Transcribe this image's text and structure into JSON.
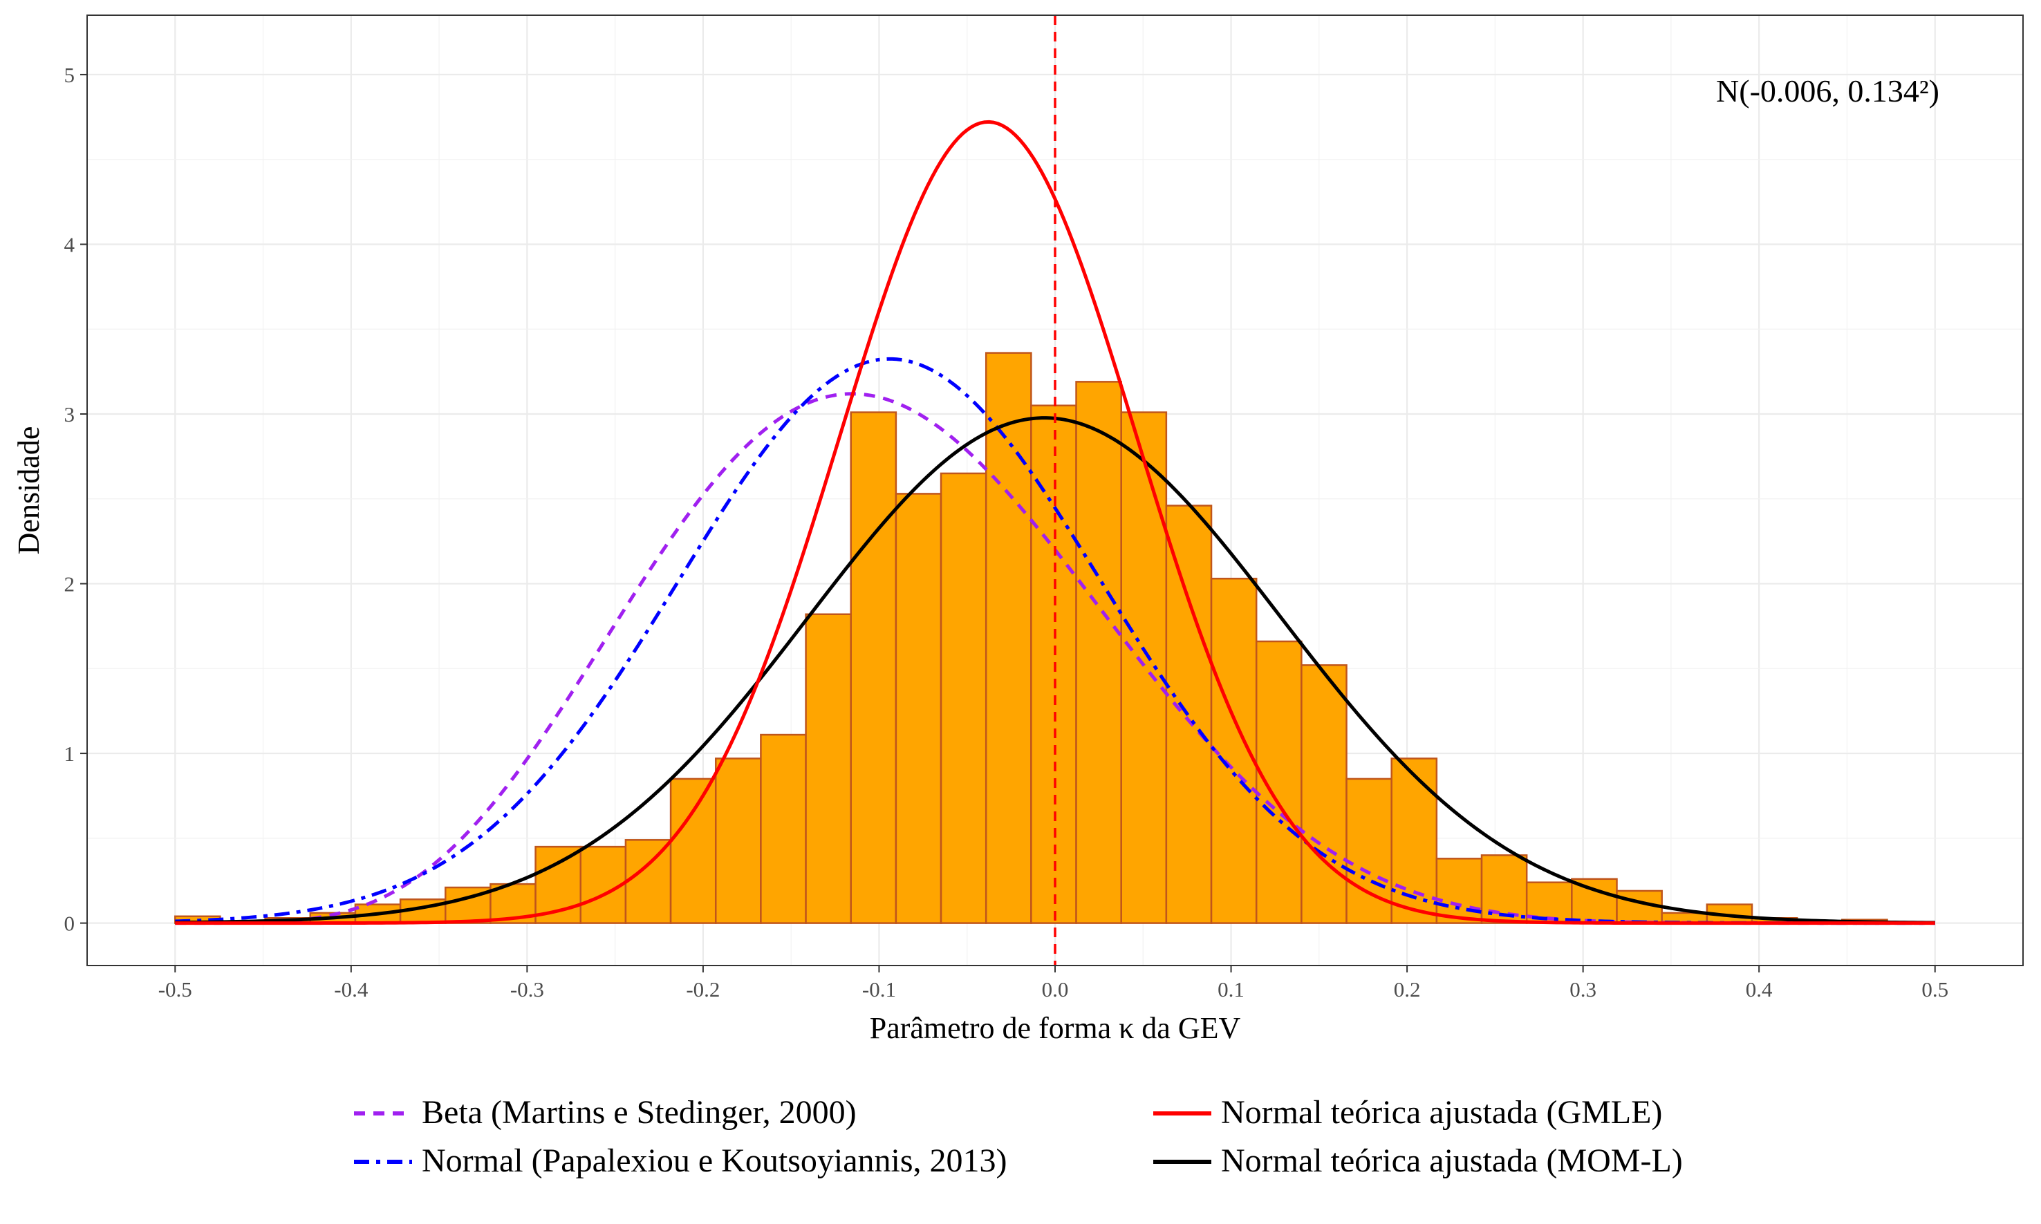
{
  "chart_data": {
    "type": "histogram",
    "xlabel": "Parâmetro de forma κ da GEV",
    "ylabel": "Densidade",
    "xlim": [
      -0.55,
      0.55
    ],
    "ylim": [
      -0.25,
      5.35
    ],
    "x_ticks": [
      -0.5,
      -0.4,
      -0.3,
      -0.2,
      -0.1,
      0.0,
      0.1,
      0.2,
      0.3,
      0.4,
      0.5
    ],
    "x_tick_labels": [
      "-0.5",
      "-0.4",
      "-0.3",
      "-0.2",
      "-0.1",
      "0.0",
      "0.1",
      "0.2",
      "0.3",
      "0.4",
      "0.5"
    ],
    "y_ticks": [
      0,
      1,
      2,
      3,
      4,
      5
    ],
    "y_tick_labels": [
      "0",
      "1",
      "2",
      "3",
      "4",
      "5"
    ],
    "grid": true,
    "reference_line": {
      "x": 0.0,
      "color": "#ff0000",
      "style": "dashed"
    },
    "annotation": "N(-0.006, 0.134²)",
    "histogram": {
      "bin_width": 0.0256,
      "fill": "#ffa500",
      "edge": "#c0561b",
      "bins": [
        {
          "x0": -0.5,
          "x1": -0.4744,
          "density": 0.04
        },
        {
          "x0": -0.4744,
          "x1": -0.4488,
          "density": 0.01
        },
        {
          "x0": -0.4488,
          "x1": -0.4232,
          "density": 0.03
        },
        {
          "x0": -0.4232,
          "x1": -0.3976,
          "density": 0.06
        },
        {
          "x0": -0.3976,
          "x1": -0.372,
          "density": 0.11
        },
        {
          "x0": -0.372,
          "x1": -0.3464,
          "density": 0.14
        },
        {
          "x0": -0.3464,
          "x1": -0.3208,
          "density": 0.21
        },
        {
          "x0": -0.3208,
          "x1": -0.2952,
          "density": 0.23
        },
        {
          "x0": -0.2952,
          "x1": -0.2696,
          "density": 0.45
        },
        {
          "x0": -0.2696,
          "x1": -0.244,
          "density": 0.45
        },
        {
          "x0": -0.244,
          "x1": -0.2184,
          "density": 0.49
        },
        {
          "x0": -0.2184,
          "x1": -0.1928,
          "density": 0.85
        },
        {
          "x0": -0.1928,
          "x1": -0.1672,
          "density": 0.97
        },
        {
          "x0": -0.1672,
          "x1": -0.1416,
          "density": 1.11
        },
        {
          "x0": -0.1416,
          "x1": -0.116,
          "density": 1.82
        },
        {
          "x0": -0.116,
          "x1": -0.0904,
          "density": 3.01
        },
        {
          "x0": -0.0904,
          "x1": -0.0648,
          "density": 2.53
        },
        {
          "x0": -0.0648,
          "x1": -0.0392,
          "density": 2.65
        },
        {
          "x0": -0.0392,
          "x1": -0.0136,
          "density": 3.36
        },
        {
          "x0": -0.0136,
          "x1": 0.012,
          "density": 3.05
        },
        {
          "x0": 0.012,
          "x1": 0.0376,
          "density": 3.19
        },
        {
          "x0": 0.0376,
          "x1": 0.0632,
          "density": 3.01
        },
        {
          "x0": 0.0632,
          "x1": 0.0888,
          "density": 2.46
        },
        {
          "x0": 0.0888,
          "x1": 0.1144,
          "density": 2.03
        },
        {
          "x0": 0.1144,
          "x1": 0.14,
          "density": 1.66
        },
        {
          "x0": 0.14,
          "x1": 0.1656,
          "density": 1.52
        },
        {
          "x0": 0.1656,
          "x1": 0.1912,
          "density": 0.85
        },
        {
          "x0": 0.1912,
          "x1": 0.2168,
          "density": 0.97
        },
        {
          "x0": 0.2168,
          "x1": 0.2424,
          "density": 0.38
        },
        {
          "x0": 0.2424,
          "x1": 0.268,
          "density": 0.4
        },
        {
          "x0": 0.268,
          "x1": 0.2936,
          "density": 0.24
        },
        {
          "x0": 0.2936,
          "x1": 0.3192,
          "density": 0.26
        },
        {
          "x0": 0.3192,
          "x1": 0.3448,
          "density": 0.19
        },
        {
          "x0": 0.3448,
          "x1": 0.3704,
          "density": 0.06
        },
        {
          "x0": 0.3704,
          "x1": 0.396,
          "density": 0.11
        },
        {
          "x0": 0.396,
          "x1": 0.4216,
          "density": 0.03
        },
        {
          "x0": 0.4216,
          "x1": 0.4472,
          "density": 0.01
        },
        {
          "x0": 0.4472,
          "x1": 0.4728,
          "density": 0.02
        },
        {
          "x0": 0.4728,
          "x1": 0.4984,
          "density": 0.0
        }
      ]
    },
    "series": [
      {
        "name": "Beta (Martins e Stedinger, 2000)",
        "kind": "beta",
        "dist": {
          "p": 6,
          "q": 9,
          "lower": -0.5,
          "upper": 0.5
        },
        "x_range": [
          -0.5,
          0.5
        ],
        "color": "#a020f0",
        "style": "dashed"
      },
      {
        "name": "Normal (Papalexiou e Koutsoyiannis, 2013)",
        "kind": "normal",
        "dist": {
          "mean": -0.094,
          "sd": 0.12
        },
        "x_range": [
          -0.5,
          0.5
        ],
        "color": "#0000ff",
        "style": "dashdot"
      },
      {
        "name": "Normal teórica ajustada (GMLE)",
        "kind": "normal",
        "dist": {
          "mean": -0.038,
          "sd": 0.0845
        },
        "x_range": [
          -0.5,
          0.5
        ],
        "color": "#ff0000",
        "style": "solid"
      },
      {
        "name": "Normal teórica ajustada (MOM-L)",
        "kind": "normal",
        "dist": {
          "mean": -0.006,
          "sd": 0.134
        },
        "x_range": [
          -0.5,
          0.5
        ],
        "color": "#000000",
        "style": "solid"
      }
    ],
    "legend_position": "bottom"
  }
}
